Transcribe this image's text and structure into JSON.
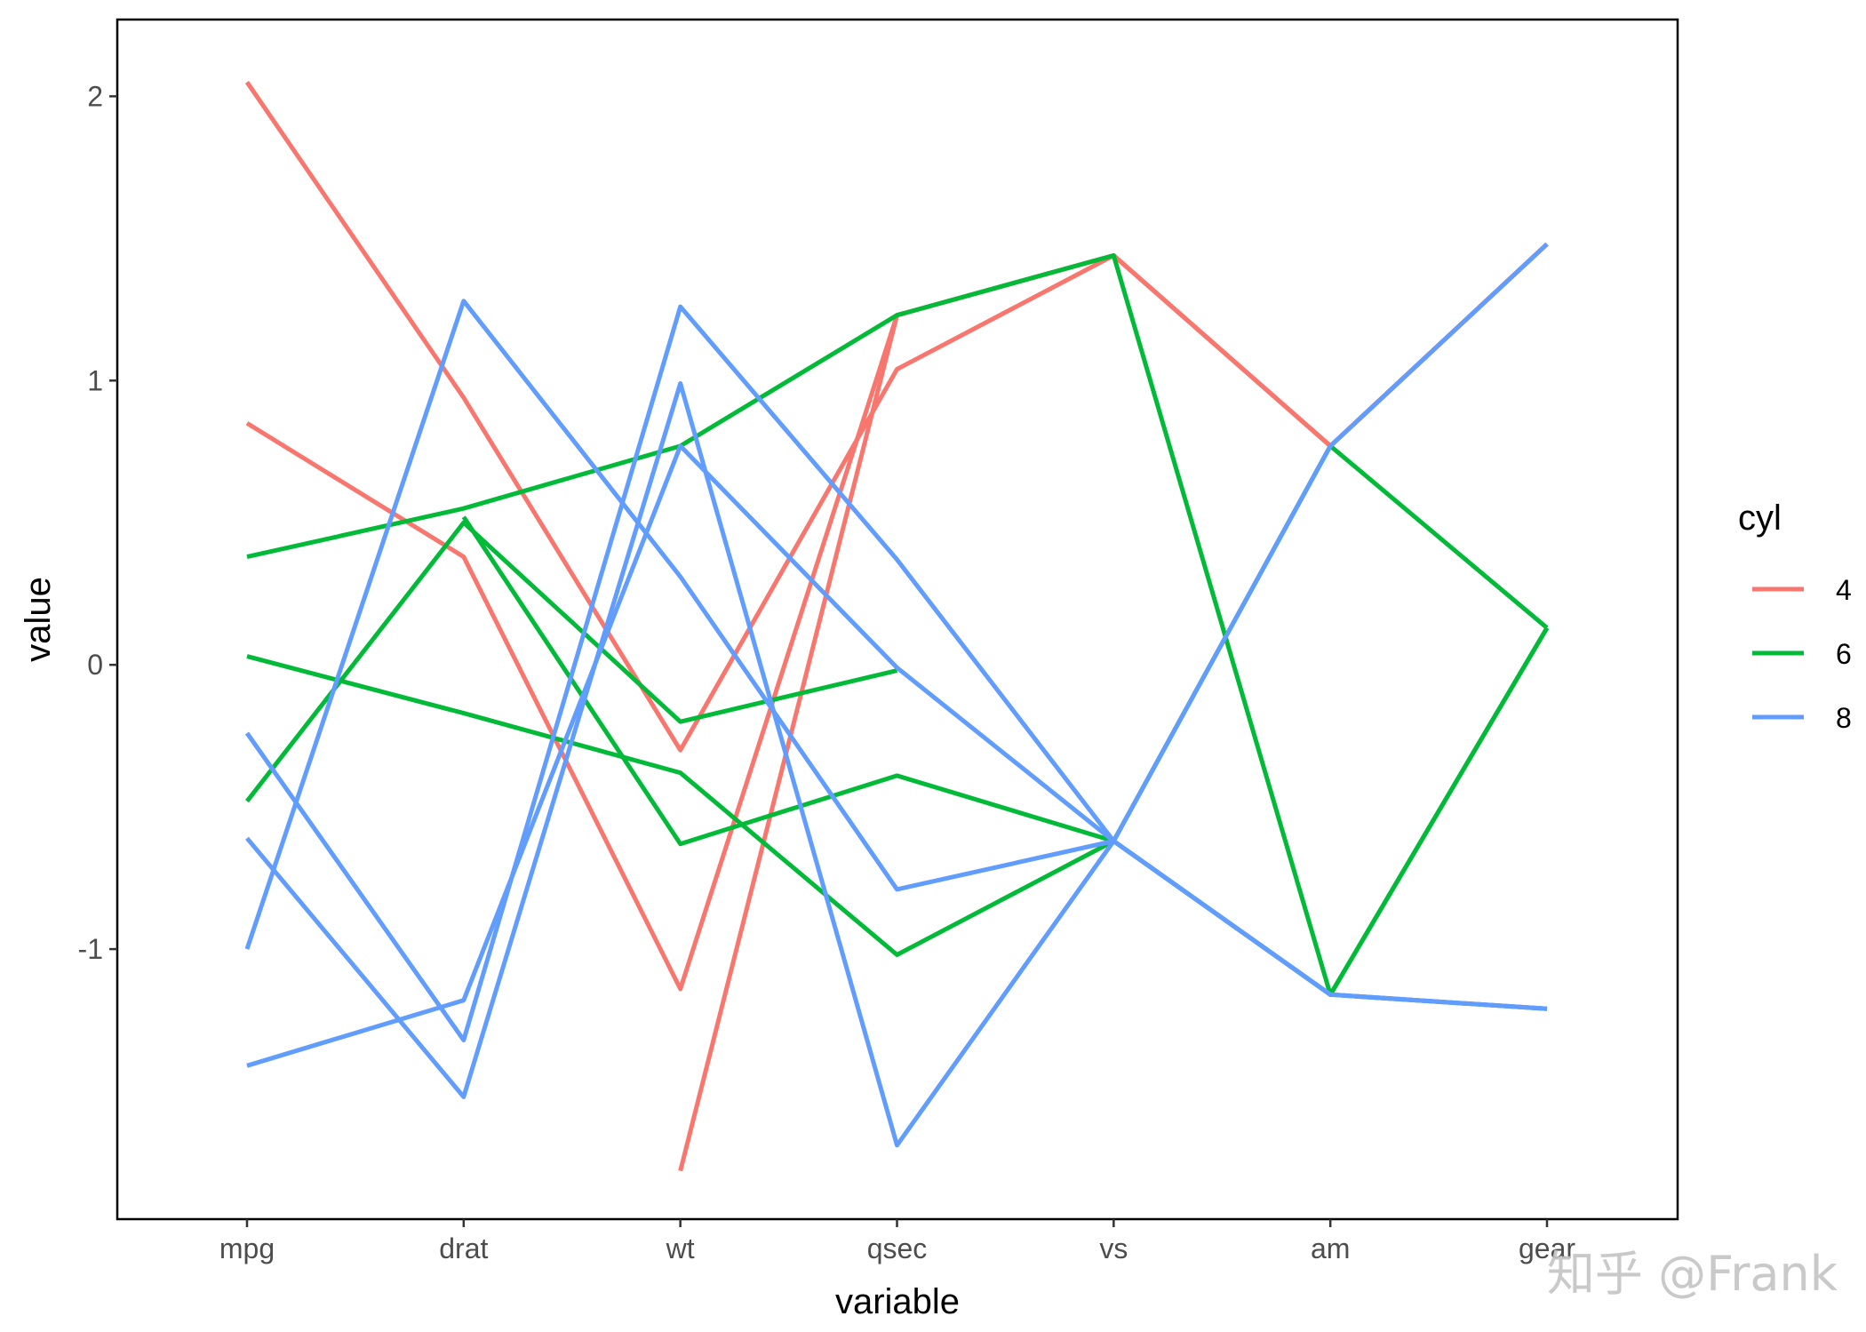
{
  "chart_data": {
    "type": "line",
    "categories": [
      "mpg",
      "drat",
      "wt",
      "qsec",
      "vs",
      "am",
      "gear"
    ],
    "xlabel": "variable",
    "ylabel": "value",
    "ylim": [
      -1.95,
      2.27
    ],
    "yticks": [
      -1,
      0,
      1,
      2
    ],
    "ytick_labels": [
      "-1",
      "0",
      "1",
      "2"
    ],
    "grid": false,
    "legend": {
      "title": "cyl",
      "position": "right",
      "entries": [
        {
          "label": "4",
          "color": "#F8766D"
        },
        {
          "label": "6",
          "color": "#00BA38"
        },
        {
          "label": "8",
          "color": "#619CFF"
        }
      ]
    },
    "series": [
      {
        "group": "4",
        "color": "#F8766D",
        "values": [
          2.05,
          0.94,
          -0.3,
          1.04,
          1.44,
          0.77,
          1.48
        ]
      },
      {
        "group": "4",
        "color": "#F8766D",
        "values": [
          0.85,
          0.38,
          -1.14,
          1.23,
          1.44,
          0.77,
          1.48
        ]
      },
      {
        "group": "4",
        "color": "#F8766D",
        "values": [
          null,
          null,
          -1.78,
          1.23,
          1.44,
          0.77,
          1.48
        ]
      },
      {
        "group": "6",
        "color": "#00BA38",
        "values": [
          0.38,
          0.55,
          0.77,
          1.23,
          1.44,
          -1.16,
          0.13
        ]
      },
      {
        "group": "6",
        "color": "#00BA38",
        "values": [
          -0.48,
          0.5,
          -0.2,
          -0.02,
          null,
          null,
          null
        ]
      },
      {
        "group": "6",
        "color": "#00BA38",
        "values": [
          0.03,
          -0.17,
          -0.38,
          -1.02,
          -0.62,
          0.77,
          0.13
        ]
      },
      {
        "group": "6",
        "color": "#00BA38",
        "values": [
          null,
          0.52,
          -0.63,
          -0.39,
          -0.62,
          -1.16,
          0.13
        ]
      },
      {
        "group": "8",
        "color": "#619CFF",
        "values": [
          -1.0,
          1.28,
          0.31,
          -0.79,
          -0.62,
          -1.16,
          -1.21
        ]
      },
      {
        "group": "8",
        "color": "#619CFF",
        "values": [
          -0.24,
          -1.32,
          1.26,
          0.37,
          -0.62,
          -1.16,
          -1.21
        ]
      },
      {
        "group": "8",
        "color": "#619CFF",
        "values": [
          -0.61,
          -1.52,
          0.99,
          -1.69,
          -0.62,
          -1.16,
          -1.21
        ]
      },
      {
        "group": "8",
        "color": "#619CFF",
        "values": [
          -1.41,
          -1.18,
          0.77,
          -0.01,
          -0.62,
          0.77,
          1.48
        ]
      }
    ]
  },
  "watermark": {
    "text": "知乎 @Frank"
  }
}
